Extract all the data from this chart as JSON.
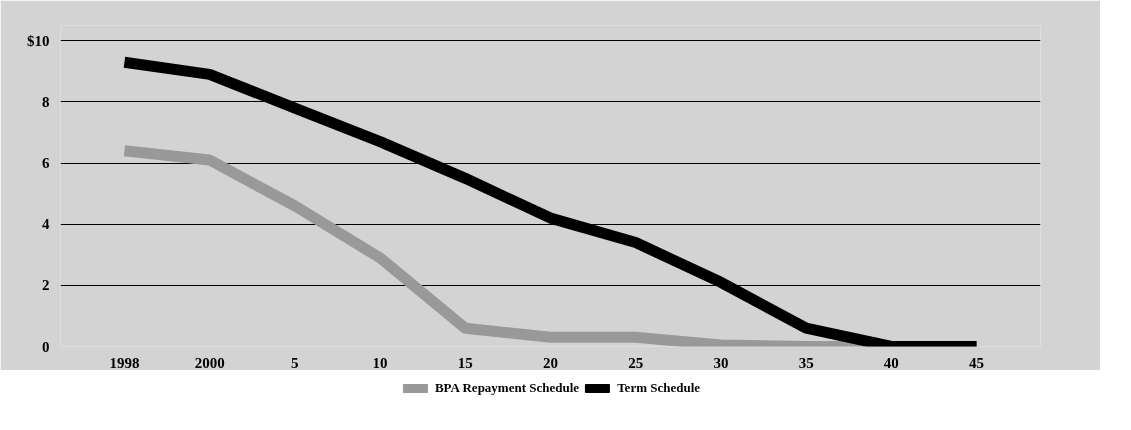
{
  "chart_data": {
    "type": "line",
    "categories": [
      "1998",
      "2000",
      "5",
      "10",
      "15",
      "20",
      "25",
      "30",
      "35",
      "40",
      "45"
    ],
    "series": [
      {
        "name": "BPA Repayment Schedule",
        "color": "#999999",
        "values": [
          6.4,
          6.1,
          4.6,
          2.9,
          0.6,
          0.3,
          0.3,
          0.05,
          0,
          0,
          0
        ]
      },
      {
        "name": "Term Schedule",
        "color": "#000000",
        "values": [
          9.3,
          8.9,
          7.8,
          6.7,
          5.5,
          4.2,
          3.4,
          2.1,
          0.6,
          0,
          0
        ]
      }
    ],
    "ylim": [
      0,
      10.5
    ],
    "yticks": [
      0,
      2,
      4,
      6,
      8,
      {
        "value": 10,
        "label": "$10"
      }
    ],
    "grid": "y",
    "legend": "bottom",
    "marker": "none",
    "line_style": "solid"
  }
}
